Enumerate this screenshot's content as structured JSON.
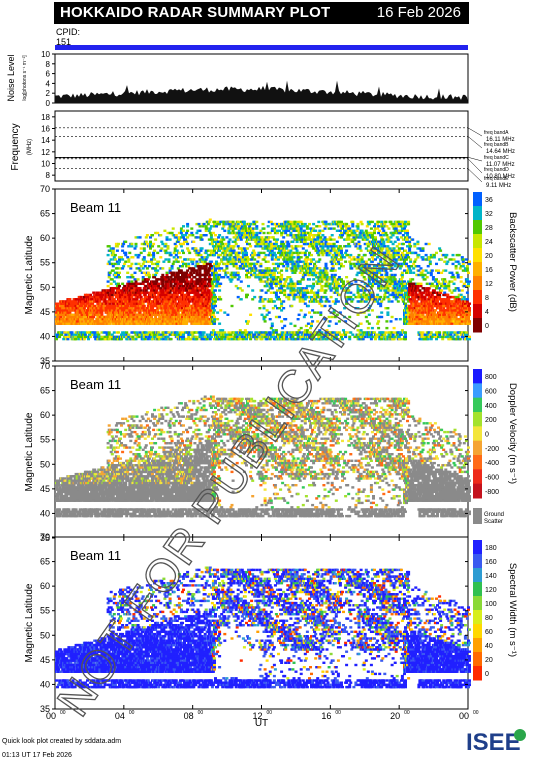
{
  "header": {
    "title": "HOKKAIDO RADAR SUMMARY PLOT",
    "date": "16 Feb 2026"
  },
  "cpid": {
    "label": "CPID:",
    "value": "151"
  },
  "noise_panel": {
    "ylabel": "Noise Level",
    "ylabel_sub": "log[photons s⁻¹ m⁻²]",
    "ticks": [
      "10",
      "8",
      "6",
      "4",
      "2",
      "0"
    ]
  },
  "freq_panel": {
    "ylabel": "Frequency",
    "unit": "(MHz)",
    "ticks": [
      "18",
      "16",
      "14",
      "12",
      "10",
      "8"
    ],
    "bands": [
      {
        "name": "freq bandA",
        "value": "16.11 MHz"
      },
      {
        "name": "freq bandB",
        "value": "14.64 MHz"
      },
      {
        "name": "freq bandC",
        "value": "11.07 MHz"
      },
      {
        "name": "freq bandD",
        "value": "10.80 MHz"
      },
      {
        "name": "freq bandE",
        "value": "9.11 MHz"
      }
    ]
  },
  "panels": [
    {
      "beam": "Beam 11",
      "ylabel": "Magnetic Latitude",
      "cbar_label": "Backscatter Power (dB)",
      "cbar_ticks": [
        "36",
        "32",
        "28",
        "24",
        "20",
        "16",
        "12",
        "8",
        "4",
        "0"
      ]
    },
    {
      "beam": "Beam 11",
      "ylabel": "Magnetic Latitude",
      "cbar_label": "Doppler Velocity (m s⁻¹)",
      "cbar_ticks": [
        "800",
        "600",
        "400",
        "200",
        "0",
        "-200",
        "-400",
        "-600",
        "-800"
      ],
      "ground_label_1": "Ground",
      "ground_label_2": "Scatter"
    },
    {
      "beam": "Beam 11",
      "ylabel": "Magnetic Latitude",
      "cbar_label": "Spectral Width (m s⁻¹)",
      "cbar_ticks": [
        "180",
        "160",
        "140",
        "120",
        "100",
        "80",
        "60",
        "40",
        "20",
        "0"
      ]
    }
  ],
  "lat_ticks": [
    "70",
    "65",
    "60",
    "55",
    "50",
    "45",
    "40",
    "35"
  ],
  "time_ticks": [
    "00",
    "04",
    "08",
    "12",
    "16",
    "20",
    "00"
  ],
  "time_sup": "00",
  "xlabel": "UT",
  "watermark": "NOT FOR PUBLICATION",
  "logo": "ISEE",
  "footer": {
    "line1": "Quick look plot created by sddata.adm",
    "line2": "01:13 UT 17 Feb 2026"
  },
  "colors": {
    "power": [
      "#7f0000",
      "#d40000",
      "#ff3000",
      "#ff8000",
      "#ffb000",
      "#ffe000",
      "#c8e600",
      "#50c800",
      "#00b4c8",
      "#0060ff"
    ],
    "velocity": [
      "#1a1aff",
      "#3a9cff",
      "#36c95a",
      "#a4e22d",
      "#f3e53b",
      "#f5a433",
      "#ff6a16",
      "#ee2a1b",
      "#c4121d"
    ],
    "width": [
      "#ff2a00",
      "#ff6a00",
      "#ffa000",
      "#ffd800",
      "#d8ee1c",
      "#8ad936",
      "#30c050",
      "#2e9cd2",
      "#3a5af0",
      "#2020ff"
    ],
    "ground": "#8a8a8a",
    "cpid_bar": "#2222ee"
  }
}
